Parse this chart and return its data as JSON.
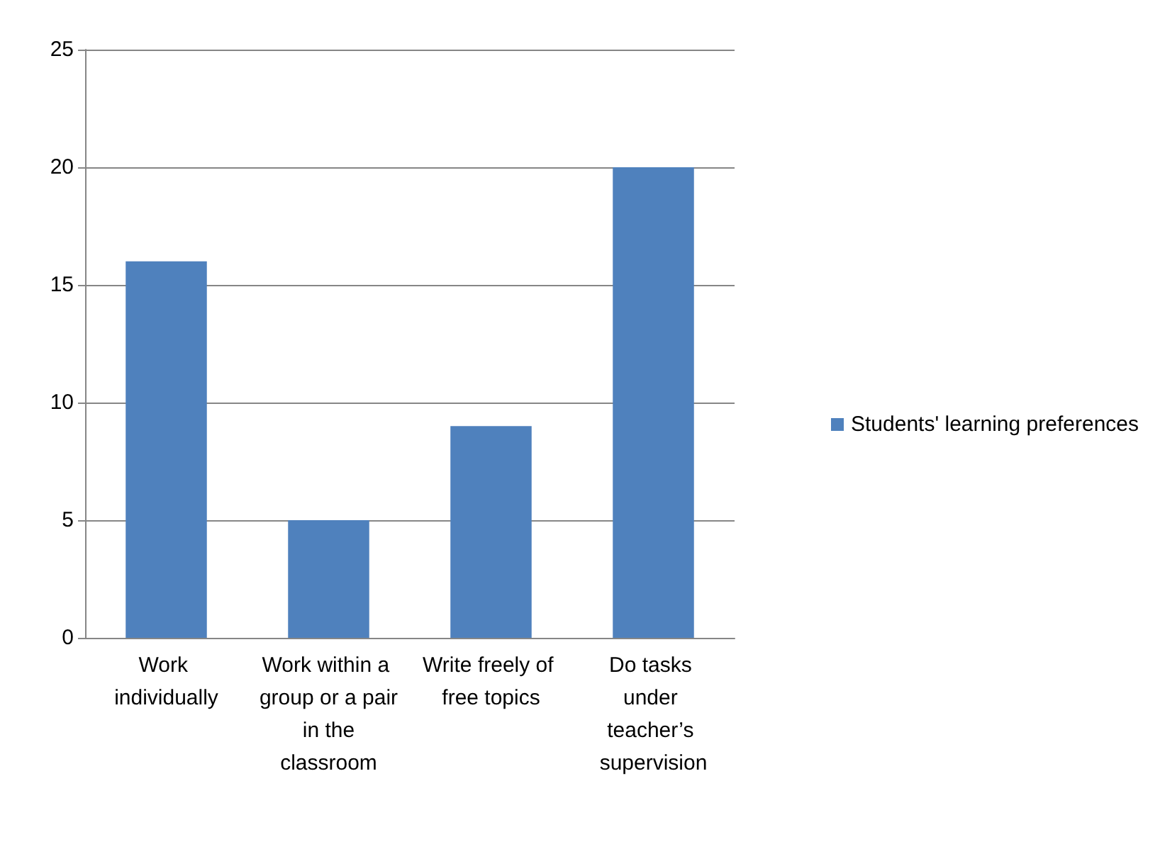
{
  "chart_data": {
    "type": "bar",
    "categories": [
      "Work individually",
      "Work within a group or a pair in the classroom",
      "Write freely of free topics",
      "Do tasks under teacher’s supervision"
    ],
    "series": [
      {
        "name": "Students' learning preferences",
        "color": "#4f81bd",
        "values": [
          16,
          5,
          9,
          20
        ]
      }
    ],
    "ylim": [
      0,
      25
    ],
    "yticks": [
      0,
      5,
      10,
      15,
      20,
      25
    ],
    "grid": "y",
    "legend": "right"
  }
}
